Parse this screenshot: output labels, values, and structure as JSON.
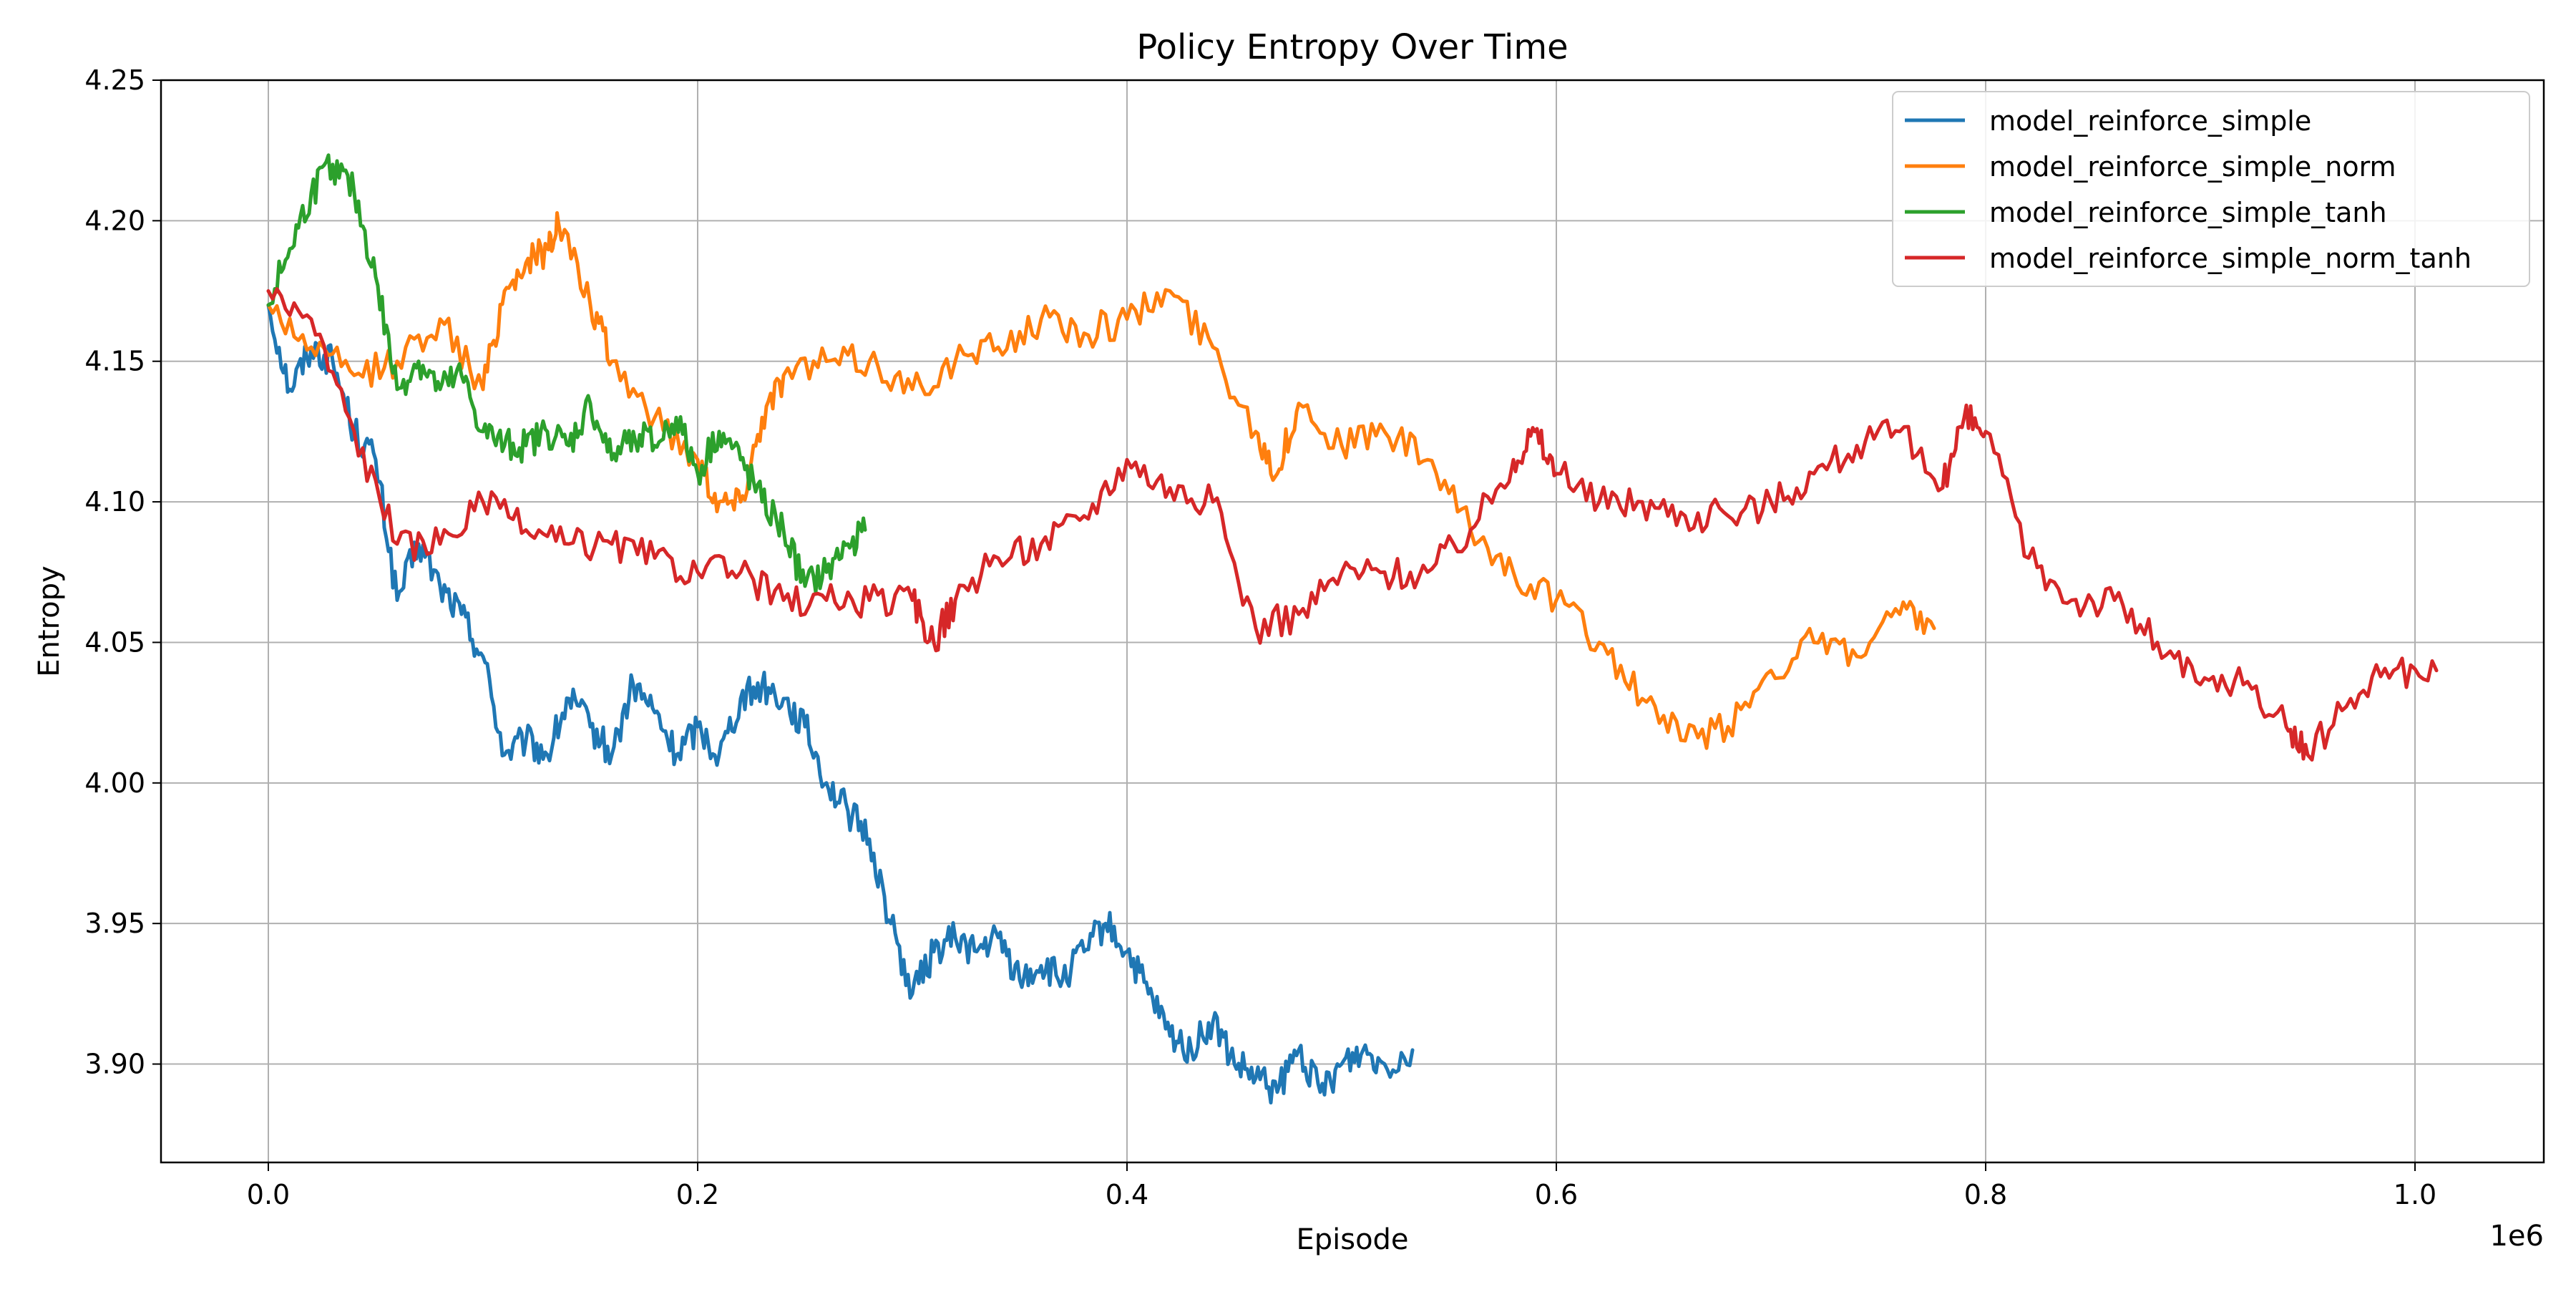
{
  "chart_data": {
    "type": "line",
    "title": "Policy Entropy Over Time",
    "xlabel": "Episode",
    "ylabel": "Entropy",
    "x_offset_label": "1e6",
    "xlim": [
      -0.05,
      1.06
    ],
    "ylim": [
      3.865,
      4.25
    ],
    "x_unit": "1e6 episodes",
    "xticks": [
      0.0,
      0.2,
      0.4,
      0.6,
      0.8,
      1.0
    ],
    "xtick_labels": [
      "0.0",
      "0.2",
      "0.4",
      "0.6",
      "0.8",
      "1.0"
    ],
    "yticks": [
      3.9,
      3.95,
      4.0,
      4.05,
      4.1,
      4.15,
      4.2,
      4.25
    ],
    "ytick_labels": [
      "3.90",
      "3.95",
      "4.00",
      "4.05",
      "4.10",
      "4.15",
      "4.20",
      "4.25"
    ],
    "grid": true,
    "legend_position": "top-right",
    "series": [
      {
        "name": "model_reinforce_simple",
        "color": "#1f77b4",
        "x": [
          0.0,
          0.01,
          0.02,
          0.03,
          0.04,
          0.05,
          0.06,
          0.07,
          0.08,
          0.09,
          0.1,
          0.11,
          0.12,
          0.13,
          0.14,
          0.15,
          0.16,
          0.17,
          0.18,
          0.19,
          0.2,
          0.21,
          0.22,
          0.23,
          0.24,
          0.25,
          0.26,
          0.27,
          0.28,
          0.29,
          0.3,
          0.31,
          0.32,
          0.33,
          0.34,
          0.35,
          0.36,
          0.37,
          0.38,
          0.39,
          0.4,
          0.41,
          0.42,
          0.43,
          0.44,
          0.45,
          0.46,
          0.47,
          0.48,
          0.49,
          0.5,
          0.51,
          0.52,
          0.533
        ],
        "y": [
          4.17,
          4.14,
          4.155,
          4.15,
          4.125,
          4.115,
          4.065,
          4.085,
          4.07,
          4.06,
          4.045,
          4.01,
          4.015,
          4.01,
          4.03,
          4.02,
          4.01,
          4.035,
          4.025,
          4.01,
          4.02,
          4.01,
          4.03,
          4.035,
          4.03,
          4.02,
          4.0,
          3.99,
          3.98,
          3.95,
          3.925,
          3.94,
          3.945,
          3.94,
          3.945,
          3.93,
          3.935,
          3.93,
          3.94,
          3.95,
          3.94,
          3.925,
          3.91,
          3.905,
          3.915,
          3.9,
          3.895,
          3.89,
          3.905,
          3.89,
          3.9,
          3.905,
          3.9,
          3.905
        ]
      },
      {
        "name": "model_reinforce_simple_norm",
        "color": "#ff7f0e",
        "x": [
          0.0,
          0.02,
          0.04,
          0.06,
          0.08,
          0.1,
          0.11,
          0.12,
          0.13,
          0.135,
          0.15,
          0.16,
          0.18,
          0.2,
          0.21,
          0.22,
          0.23,
          0.24,
          0.26,
          0.28,
          0.3,
          0.32,
          0.34,
          0.36,
          0.38,
          0.4,
          0.42,
          0.44,
          0.46,
          0.47,
          0.48,
          0.5,
          0.52,
          0.54,
          0.56,
          0.58,
          0.6,
          0.62,
          0.64,
          0.66,
          0.68,
          0.7,
          0.72,
          0.74,
          0.76,
          0.776
        ],
        "y": [
          4.17,
          4.155,
          4.145,
          4.15,
          4.165,
          4.14,
          4.175,
          4.185,
          4.19,
          4.2,
          4.17,
          4.15,
          4.13,
          4.115,
          4.1,
          4.1,
          4.13,
          4.145,
          4.15,
          4.15,
          4.14,
          4.15,
          4.155,
          4.165,
          4.16,
          4.165,
          4.175,
          4.155,
          4.125,
          4.11,
          4.135,
          4.12,
          4.125,
          4.115,
          4.09,
          4.075,
          4.065,
          4.05,
          4.03,
          4.015,
          4.02,
          4.04,
          4.05,
          4.045,
          4.06,
          4.055
        ]
      },
      {
        "name": "model_reinforce_simple_tanh",
        "color": "#2ca02c",
        "x": [
          0.0,
          0.01,
          0.02,
          0.03,
          0.04,
          0.05,
          0.06,
          0.07,
          0.08,
          0.09,
          0.1,
          0.11,
          0.12,
          0.13,
          0.14,
          0.15,
          0.16,
          0.17,
          0.18,
          0.19,
          0.2,
          0.21,
          0.22,
          0.23,
          0.24,
          0.25,
          0.26,
          0.27,
          0.278
        ],
        "y": [
          4.17,
          4.19,
          4.21,
          4.22,
          4.21,
          4.18,
          4.14,
          4.15,
          4.14,
          4.145,
          4.125,
          4.12,
          4.12,
          4.125,
          4.12,
          4.135,
          4.115,
          4.125,
          4.12,
          4.13,
          4.11,
          4.125,
          4.115,
          4.1,
          4.09,
          4.07,
          4.075,
          4.085,
          4.09
        ]
      },
      {
        "name": "model_reinforce_simple_norm_tanh",
        "color": "#d62728",
        "x": [
          0.0,
          0.02,
          0.04,
          0.06,
          0.08,
          0.1,
          0.12,
          0.14,
          0.16,
          0.18,
          0.2,
          0.22,
          0.24,
          0.26,
          0.28,
          0.3,
          0.31,
          0.32,
          0.34,
          0.36,
          0.38,
          0.4,
          0.42,
          0.44,
          0.46,
          0.48,
          0.5,
          0.52,
          0.54,
          0.56,
          0.58,
          0.59,
          0.6,
          0.62,
          0.64,
          0.66,
          0.68,
          0.7,
          0.72,
          0.74,
          0.76,
          0.78,
          0.79,
          0.8,
          0.82,
          0.84,
          0.86,
          0.88,
          0.9,
          0.92,
          0.94,
          0.95,
          0.97,
          0.99,
          1.01
        ],
        "y": [
          4.175,
          4.165,
          4.125,
          4.085,
          4.085,
          4.1,
          4.09,
          4.085,
          4.085,
          4.08,
          4.075,
          4.075,
          4.065,
          4.065,
          4.065,
          4.065,
          4.05,
          4.065,
          4.08,
          4.085,
          4.095,
          4.115,
          4.105,
          4.1,
          4.055,
          4.06,
          4.075,
          4.075,
          4.075,
          4.09,
          4.115,
          4.125,
          4.11,
          4.1,
          4.1,
          4.095,
          4.095,
          4.1,
          4.11,
          4.12,
          4.125,
          4.105,
          4.13,
          4.125,
          4.08,
          4.065,
          4.065,
          4.05,
          4.035,
          4.035,
          4.02,
          4.01,
          4.03,
          4.04,
          4.04
        ]
      }
    ]
  }
}
